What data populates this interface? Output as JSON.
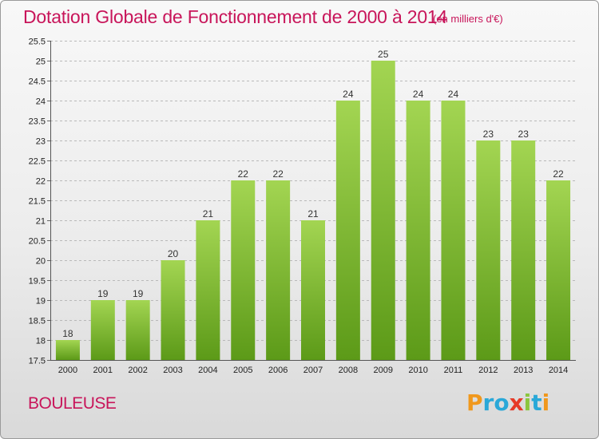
{
  "header": {
    "title": "Dotation Globale de Fonctionnement de 2000 à 2014",
    "subtitle": "(en milliers d'€)"
  },
  "footer": {
    "commune": "BOULEUSE",
    "logo": {
      "text": "Proxiti",
      "letters": [
        {
          "ch": "P",
          "color": "#f0981d"
        },
        {
          "ch": "r",
          "color": "#2aa8d8"
        },
        {
          "ch": "o",
          "color": "#2aa8d8"
        },
        {
          "ch": "x",
          "color": "#e63a28"
        },
        {
          "ch": "i",
          "color": "#8cc63f"
        },
        {
          "ch": "t",
          "color": "#2aa8d8"
        },
        {
          "ch": "i",
          "color": "#f0981d"
        }
      ]
    }
  },
  "colors": {
    "title": "#c8155a",
    "bar_top": "#a3d552",
    "bar_bottom": "#5c9a18",
    "grid": "#b9b9b9",
    "axis_text": "#222222"
  },
  "chart_data": {
    "type": "bar",
    "categories": [
      "2000",
      "2001",
      "2002",
      "2003",
      "2004",
      "2005",
      "2006",
      "2007",
      "2008",
      "2009",
      "2010",
      "2011",
      "2012",
      "2013",
      "2014"
    ],
    "values": [
      18,
      19,
      19,
      20,
      21,
      22,
      22,
      21,
      24,
      25,
      24,
      24,
      23,
      23,
      22
    ],
    "data_labels": [
      "18",
      "19",
      "19",
      "20",
      "21",
      "22",
      "22",
      "21",
      "24",
      "25",
      "24",
      "24",
      "23",
      "23",
      "22"
    ],
    "ylim": [
      17.5,
      25.5
    ],
    "yticks": [
      17.5,
      18,
      18.5,
      19,
      19.5,
      20,
      20.5,
      21,
      21.5,
      22,
      22.5,
      23,
      23.5,
      24,
      24.5,
      25,
      25.5
    ],
    "ytick_labels": [
      "17.5",
      "18",
      "18.5",
      "19",
      "19.5",
      "20",
      "20.5",
      "21",
      "21.5",
      "22",
      "22.5",
      "23",
      "23.5",
      "24",
      "24.5",
      "25",
      "25.5"
    ],
    "grid": true,
    "legend": "none"
  }
}
